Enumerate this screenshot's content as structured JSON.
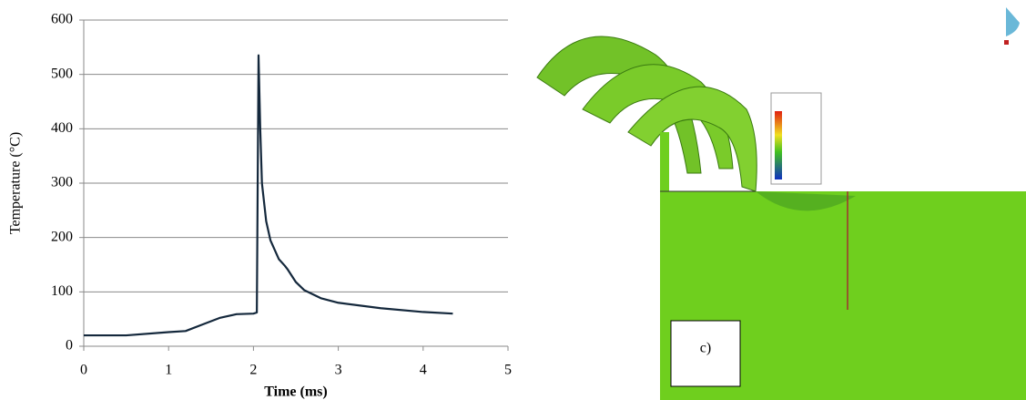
{
  "chart_data": {
    "type": "line",
    "xlabel": "Time (ms)",
    "ylabel": "Temperature (°C)",
    "x": [
      0,
      0.5,
      1.0,
      1.2,
      1.4,
      1.6,
      1.8,
      2.0,
      2.04,
      2.06,
      2.08,
      2.1,
      2.15,
      2.2,
      2.3,
      2.37,
      2.4,
      2.5,
      2.6,
      2.8,
      3.0,
      3.5,
      4.0,
      4.35
    ],
    "series": [
      {
        "color": "#14283c",
        "values": [
          20,
          20,
          26,
          28,
          40,
          52,
          59,
          60,
          62,
          535,
          400,
          300,
          230,
          195,
          160,
          148,
          142,
          118,
          103,
          88,
          80,
          70,
          63,
          60
        ]
      }
    ],
    "xlim": [
      0,
      5
    ],
    "xticks": [
      0,
      1,
      2,
      3,
      4,
      5
    ],
    "ylim": [
      0,
      600
    ],
    "yticks": [
      0,
      100,
      200,
      300,
      400,
      500,
      600
    ],
    "grid": true
  },
  "figure_panel": {
    "label": "c)"
  }
}
